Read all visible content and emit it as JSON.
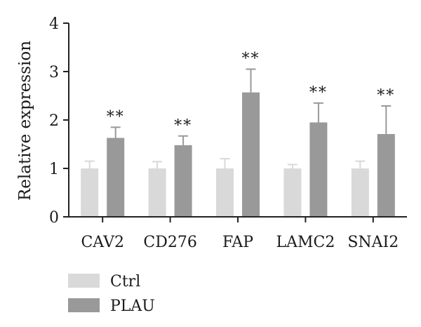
{
  "chart_data": {
    "type": "bar",
    "title": "",
    "xlabel": "",
    "ylabel": "Relative expression",
    "ylim": [
      0,
      4
    ],
    "yticks": [
      0,
      1,
      2,
      3,
      4
    ],
    "grid": false,
    "legend_position": "bottom-left",
    "categories": [
      "CAV2",
      "CD276",
      "FAP",
      "LAMC2",
      "SNAI2"
    ],
    "series": [
      {
        "name": "Ctrl",
        "color": "#d9d9d9",
        "values": [
          1.0,
          1.0,
          1.0,
          1.0,
          1.0
        ],
        "errors": [
          0.15,
          0.14,
          0.2,
          0.08,
          0.15
        ]
      },
      {
        "name": "PLAU",
        "color": "#999999",
        "values": [
          1.63,
          1.48,
          2.57,
          1.95,
          1.71
        ],
        "errors": [
          0.22,
          0.19,
          0.48,
          0.4,
          0.58
        ]
      }
    ],
    "significance": [
      "**",
      "**",
      "**",
      "**",
      "**"
    ]
  }
}
